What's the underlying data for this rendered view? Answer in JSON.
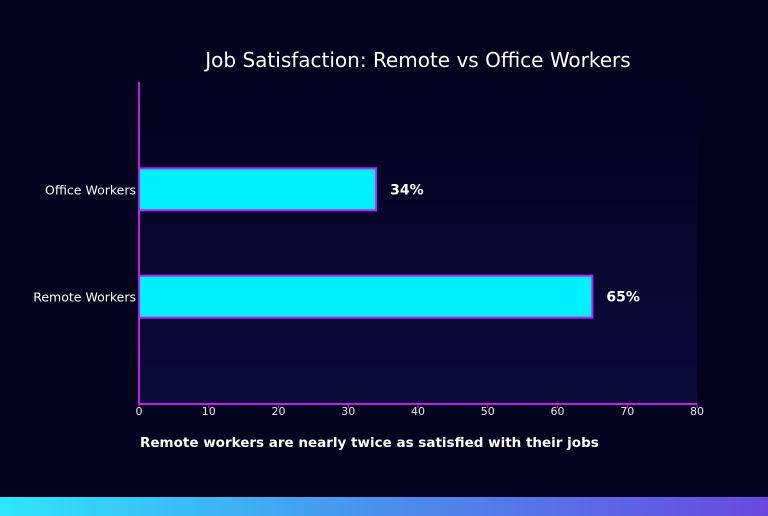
{
  "chart_data": {
    "type": "bar",
    "orientation": "horizontal",
    "title": "Job Satisfaction: Remote vs Office Workers",
    "categories": [
      "Remote Workers",
      "Office Workers"
    ],
    "values": [
      65,
      34
    ],
    "data_labels": [
      "65%",
      "34%"
    ],
    "xlim": [
      0,
      80
    ],
    "xticks": [
      "0",
      "10",
      "20",
      "30",
      "40",
      "50",
      "60",
      "70",
      "80"
    ],
    "xlabel": "",
    "ylabel": "",
    "annotation": "Remote workers are nearly twice as satisfied with their jobs",
    "grid": false,
    "colors": {
      "bar": "#00f0ff",
      "bar_edge": "#b026ff",
      "axis": "#c21fe0",
      "background": "#03021f",
      "text": "#ffffff"
    }
  }
}
